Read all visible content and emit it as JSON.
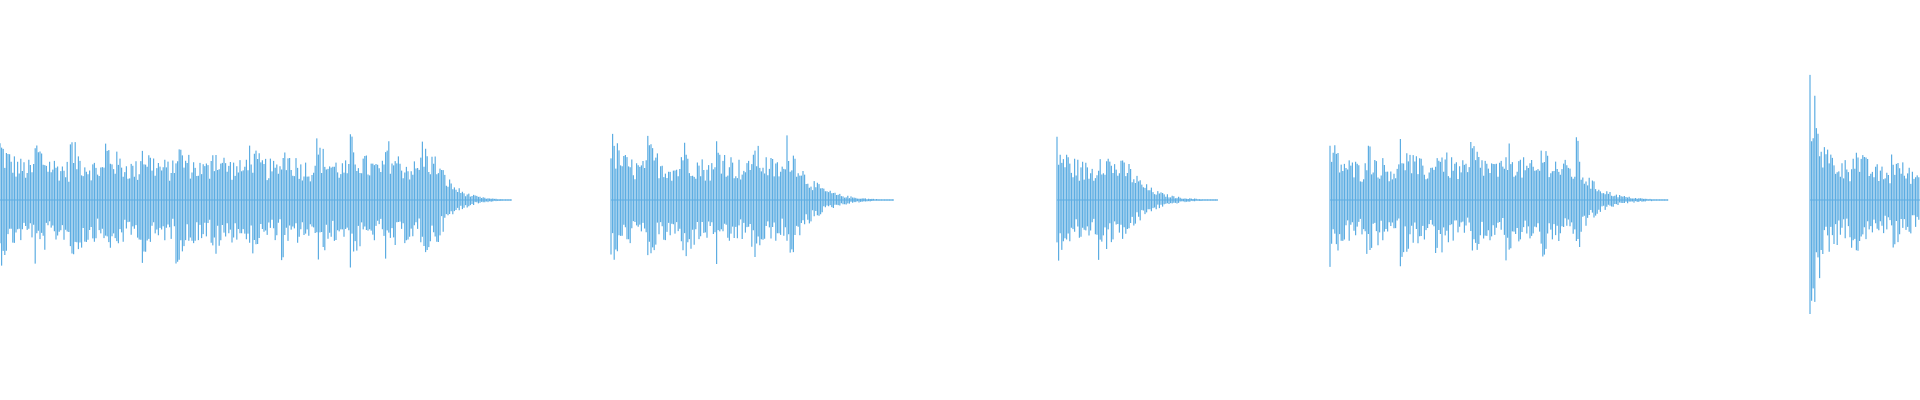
{
  "chart_data": {
    "type": "waveform",
    "title": "",
    "segment_count": 5,
    "grid": false,
    "axes": false
  },
  "colors": {
    "waveform": "#5dade2",
    "background": "#ffffff"
  }
}
